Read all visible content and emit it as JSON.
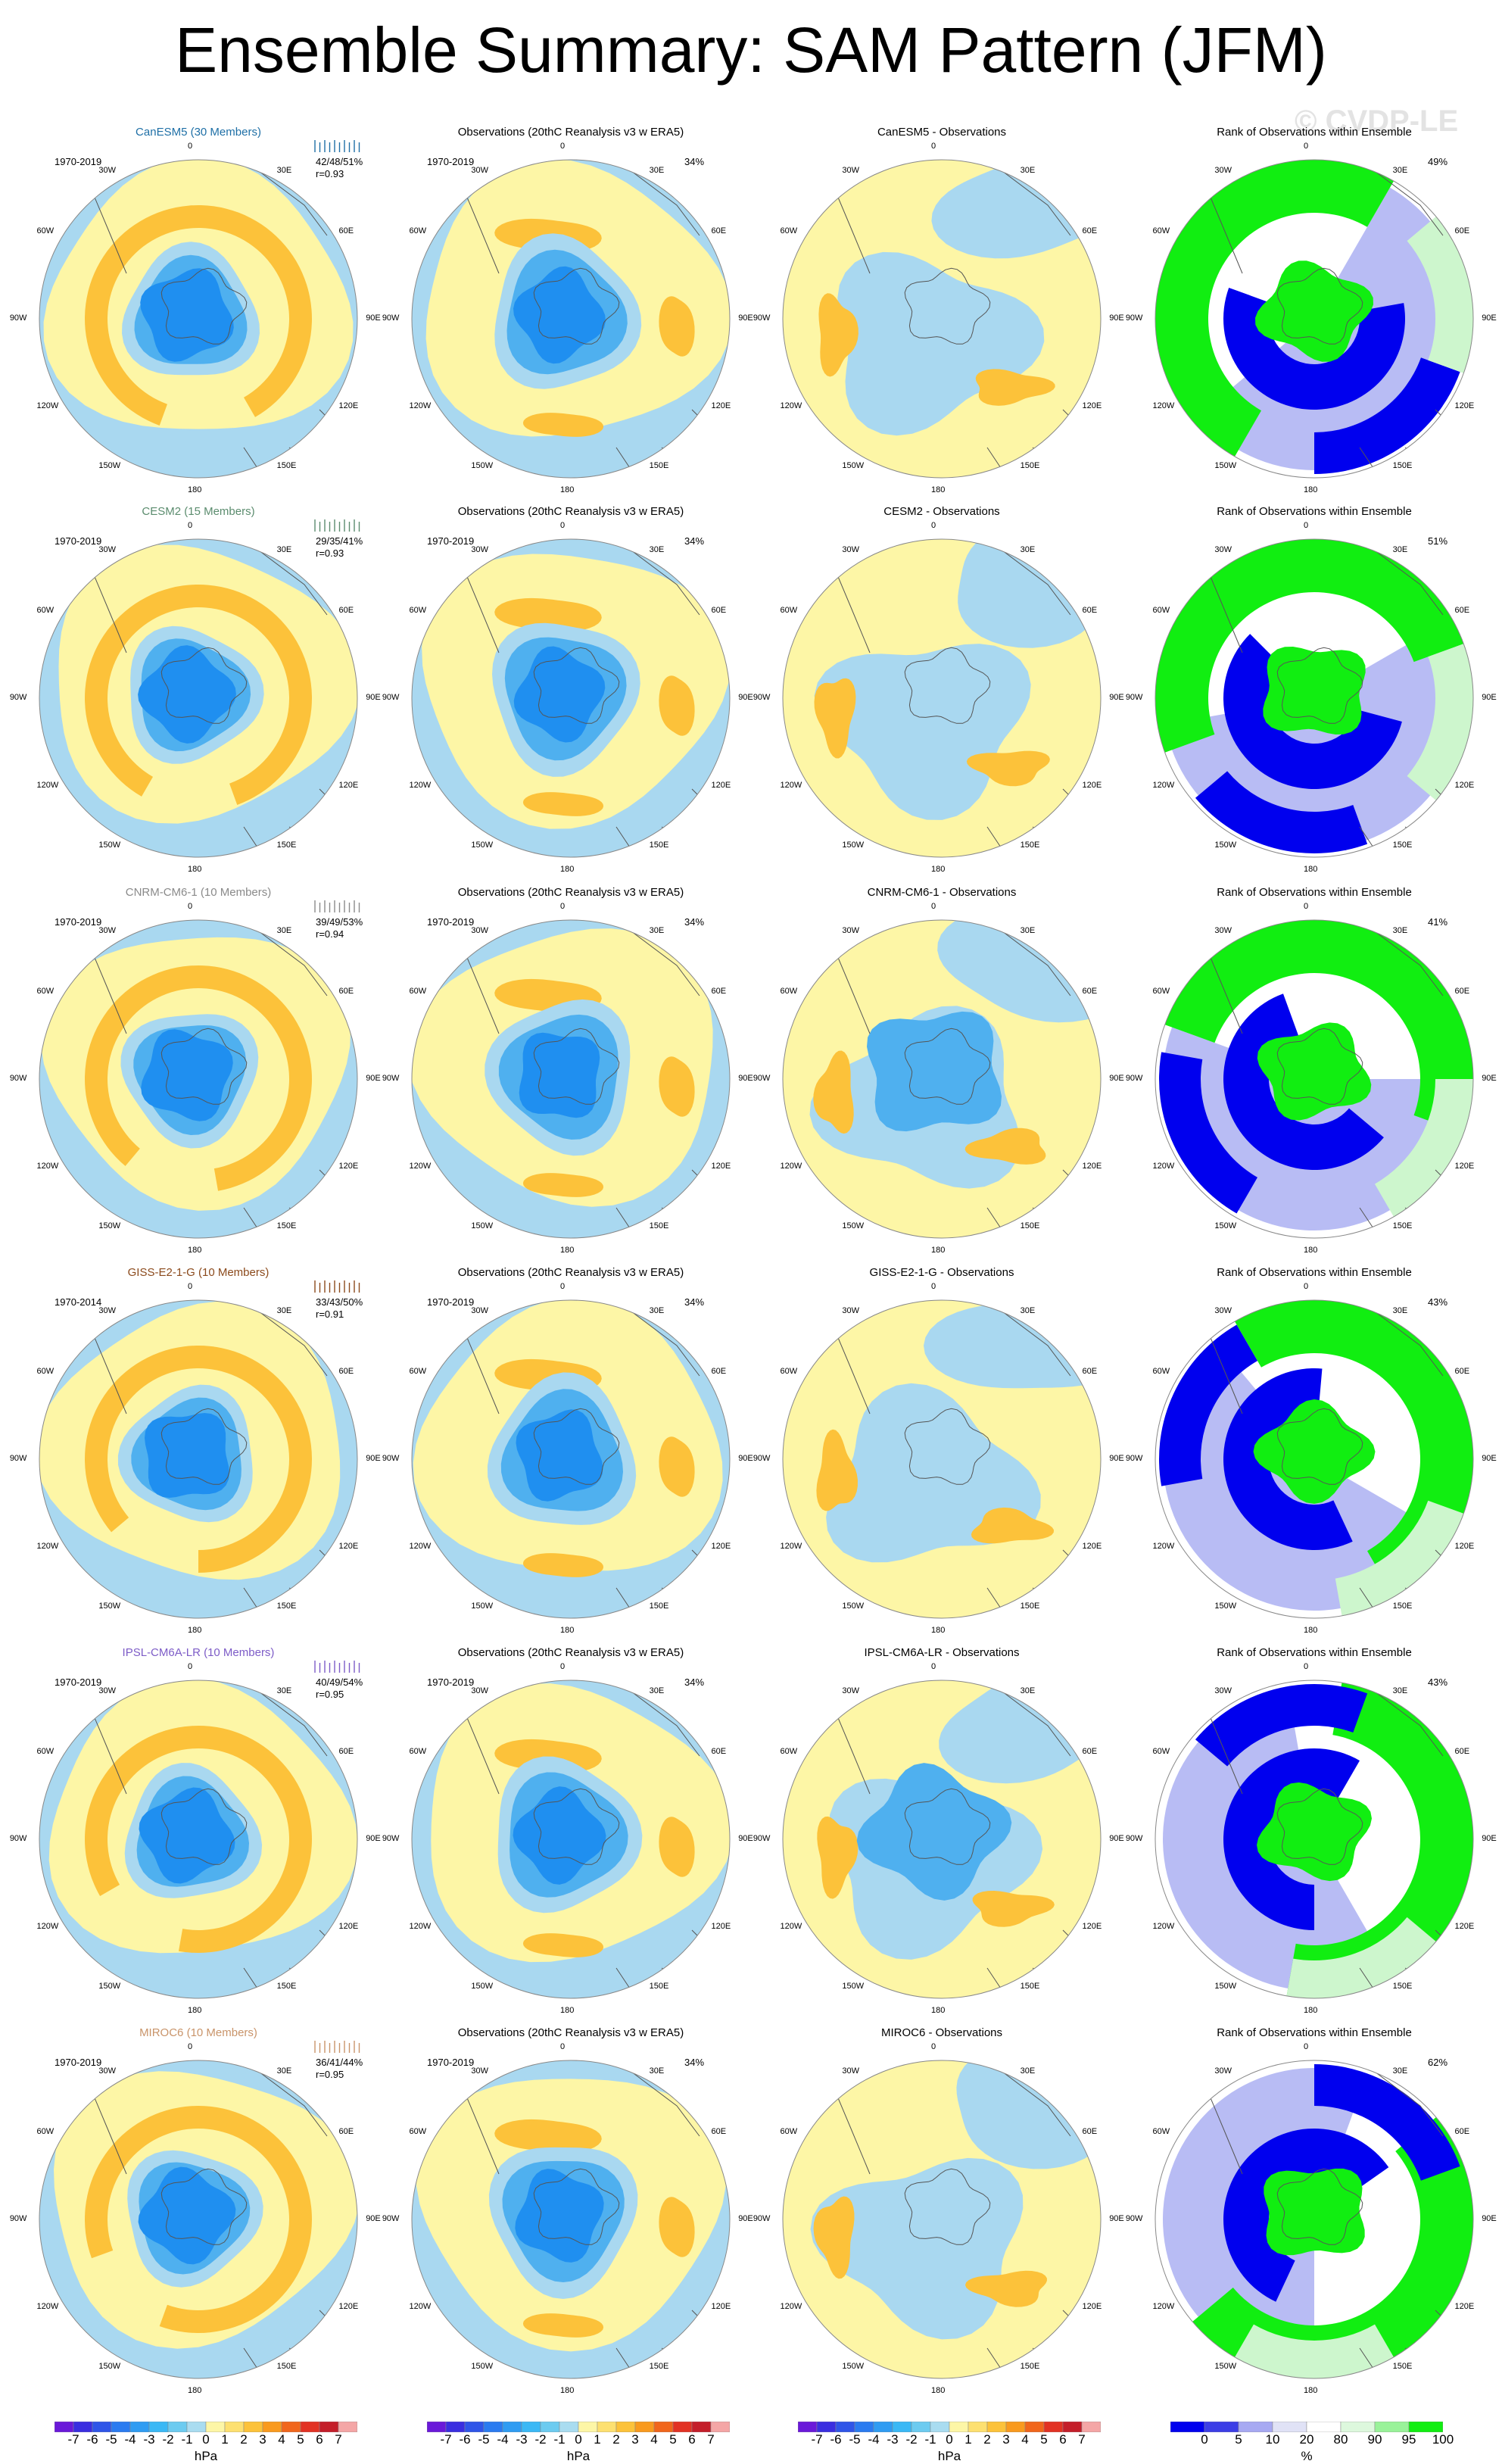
{
  "title": "Ensemble Summary: SAM Pattern (JFM)",
  "watermark": "© CVDP-LE",
  "longitude_labels": [
    "0",
    "30E",
    "60E",
    "90E",
    "120E",
    "150E",
    "180",
    "150W",
    "120W",
    "90W",
    "60W",
    "30W"
  ],
  "columns": [
    {
      "type": "model"
    },
    {
      "type": "observations",
      "title": "Observations (20thC Reanalysis v3 w ERA5)"
    },
    {
      "type": "difference",
      "title_suffix": " - Observations"
    },
    {
      "type": "rank",
      "title": "Rank of Observations within Ensemble"
    }
  ],
  "rows": [
    {
      "model": "CanESM5 (30 Members)",
      "model_short": "CanESM5",
      "title_color": "#1e6fa6",
      "period": "1970-2019",
      "stats": "42/48/51%",
      "corr": "r=0.93",
      "obs_period": "1970-2019",
      "obs_pct": "34%",
      "rank_pct": "49%",
      "rug_color": "#1e6fa6"
    },
    {
      "model": "CESM2 (15 Members)",
      "model_short": "CESM2",
      "title_color": "#5b8c6e",
      "period": "1970-2019",
      "stats": "29/35/41%",
      "corr": "r=0.93",
      "obs_period": "1970-2019",
      "obs_pct": "34%",
      "rank_pct": "51%",
      "rug_color": "#5b8c6e"
    },
    {
      "model": "CNRM-CM6-1 (10 Members)",
      "model_short": "CNRM-CM6-1",
      "title_color": "#8a8a8a",
      "period": "1970-2019",
      "stats": "39/49/53%",
      "corr": "r=0.94",
      "obs_period": "1970-2019",
      "obs_pct": "34%",
      "rank_pct": "41%",
      "rug_color": "#8a8a8a"
    },
    {
      "model": "GISS-E2-1-G (10 Members)",
      "model_short": "GISS-E2-1-G",
      "title_color": "#8b4a1c",
      "period": "1970-2014",
      "stats": "33/43/50%",
      "corr": "r=0.91",
      "obs_period": "1970-2019",
      "obs_pct": "34%",
      "rank_pct": "43%",
      "rug_color": "#8b4a1c"
    },
    {
      "model": "IPSL-CM6A-LR (10 Members)",
      "model_short": "IPSL-CM6A-LR",
      "title_color": "#7d5cc7",
      "period": "1970-2019",
      "stats": "40/49/54%",
      "corr": "r=0.95",
      "obs_period": "1970-2019",
      "obs_pct": "34%",
      "rank_pct": "43%",
      "rug_color": "#7d5cc7"
    },
    {
      "model": "MIROC6 (10 Members)",
      "model_short": "MIROC6",
      "title_color": "#c9946a",
      "period": "1970-2019",
      "stats": "36/41/44%",
      "corr": "r=0.95",
      "obs_period": "1970-2019",
      "obs_pct": "34%",
      "rank_pct": "62%",
      "rug_color": "#c9946a"
    }
  ],
  "colorbar_hpa": {
    "ticks": [
      "-7",
      "-6",
      "-5",
      "-4",
      "-3",
      "-2",
      "-1",
      "0",
      "1",
      "2",
      "3",
      "4",
      "5",
      "6",
      "7"
    ],
    "unit": "hPa",
    "colors": [
      "#6a19d9",
      "#3a2ee0",
      "#2f55e8",
      "#2a7bf0",
      "#2f9cf2",
      "#3ab8f5",
      "#6ccbf0",
      "#a9dcf0",
      "#fdf6a6",
      "#fde070",
      "#fcc23a",
      "#f99a1e",
      "#f1661c",
      "#e23224",
      "#c41e2a",
      "#f4a6a6"
    ]
  },
  "colorbar_rank": {
    "ticks": [
      "0",
      "5",
      "10",
      "20",
      "80",
      "90",
      "95",
      "100"
    ],
    "unit": "%",
    "colors": [
      "#0000ee",
      "#3c3ee6",
      "#a7a9f2",
      "#e0e2f6",
      "#ffffff",
      "#ddf8dd",
      "#99f299",
      "#11ee11"
    ]
  },
  "field_colors": {
    "deep_blue": "#1f8ff0",
    "mid_blue": "#4fb0ef",
    "light_blue": "#a9d8f0",
    "neutral": "#fdf6a6",
    "orange": "#fcc23a",
    "dark_orange": "#f99a1e",
    "rank_low": "#0000ee",
    "rank_mid_low": "#b8bcf4",
    "rank_high": "#11ee11",
    "rank_mid_high": "#cdf6cd"
  }
}
